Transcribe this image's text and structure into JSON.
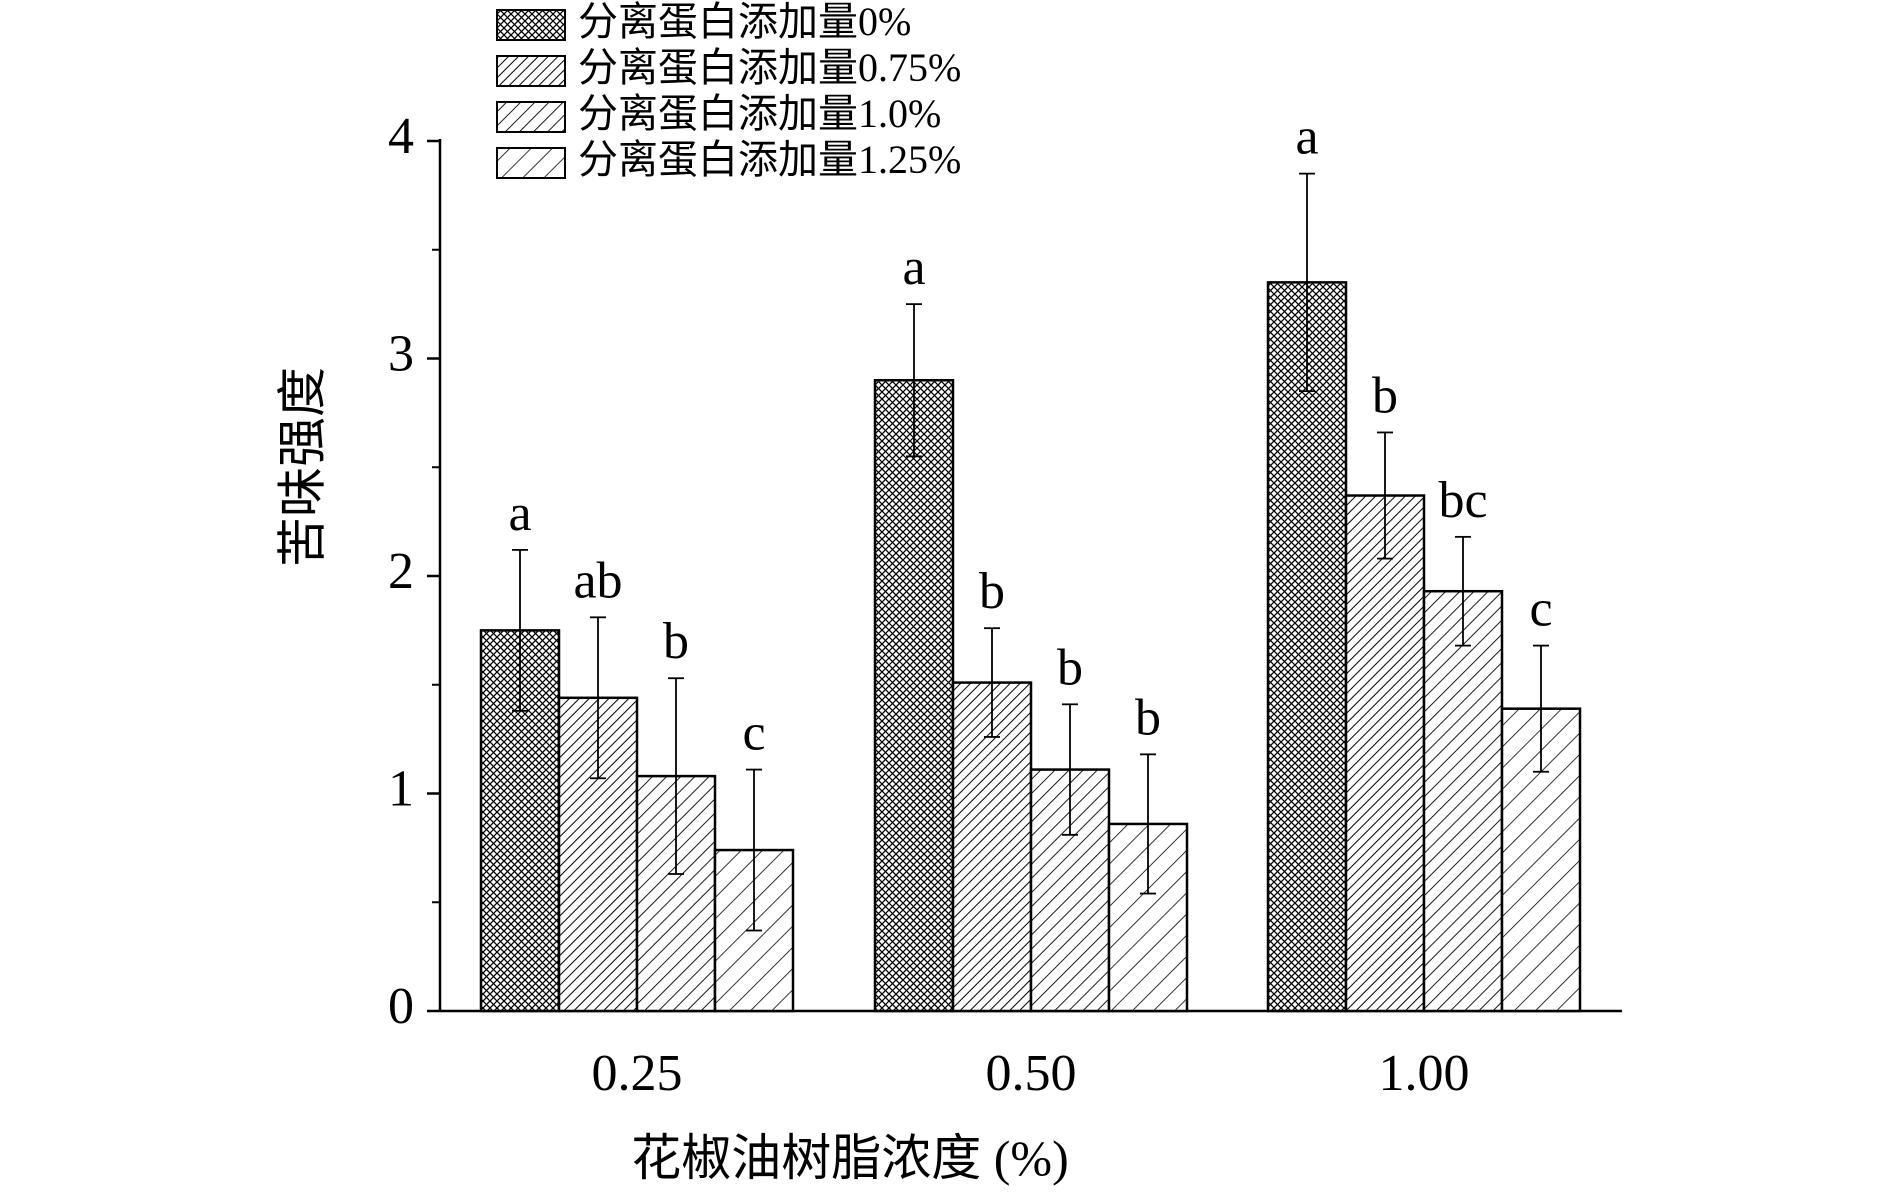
{
  "chart_data": {
    "type": "bar",
    "xlabel": "花椒油树脂浓度 (%)",
    "ylabel": "苦味强度",
    "ylim": [
      0,
      4
    ],
    "yticks": [
      "0",
      "1",
      "2",
      "3",
      "4"
    ],
    "categories": [
      "0.25",
      "0.50",
      "1.00"
    ],
    "series": [
      {
        "name": "分离蛋白添加量0%",
        "pattern": "crosshatch",
        "values": [
          1.75,
          2.9,
          3.35
        ],
        "errors": [
          0.37,
          0.35,
          0.5
        ],
        "labels": [
          "a",
          "a",
          "a"
        ]
      },
      {
        "name": "分离蛋白添加量0.75%",
        "pattern": "dense-diagonal",
        "values": [
          1.44,
          1.51,
          2.37
        ],
        "errors": [
          0.37,
          0.25,
          0.29
        ],
        "labels": [
          "ab",
          "b",
          "b"
        ]
      },
      {
        "name": "分离蛋白添加量1.0%",
        "pattern": "medium-diagonal",
        "values": [
          1.08,
          1.11,
          1.93
        ],
        "errors": [
          0.45,
          0.3,
          0.25
        ],
        "labels": [
          "b",
          "b",
          "bc"
        ]
      },
      {
        "name": "分离蛋白添加量1.25%",
        "pattern": "sparse-diagonal",
        "values": [
          0.74,
          0.86,
          1.39
        ],
        "errors": [
          0.37,
          0.32,
          0.29
        ],
        "labels": [
          "c",
          "b",
          "c"
        ]
      }
    ],
    "legend_position": "top",
    "grid": false
  },
  "colors": {
    "ink": "#000000",
    "background": "#ffffff"
  }
}
